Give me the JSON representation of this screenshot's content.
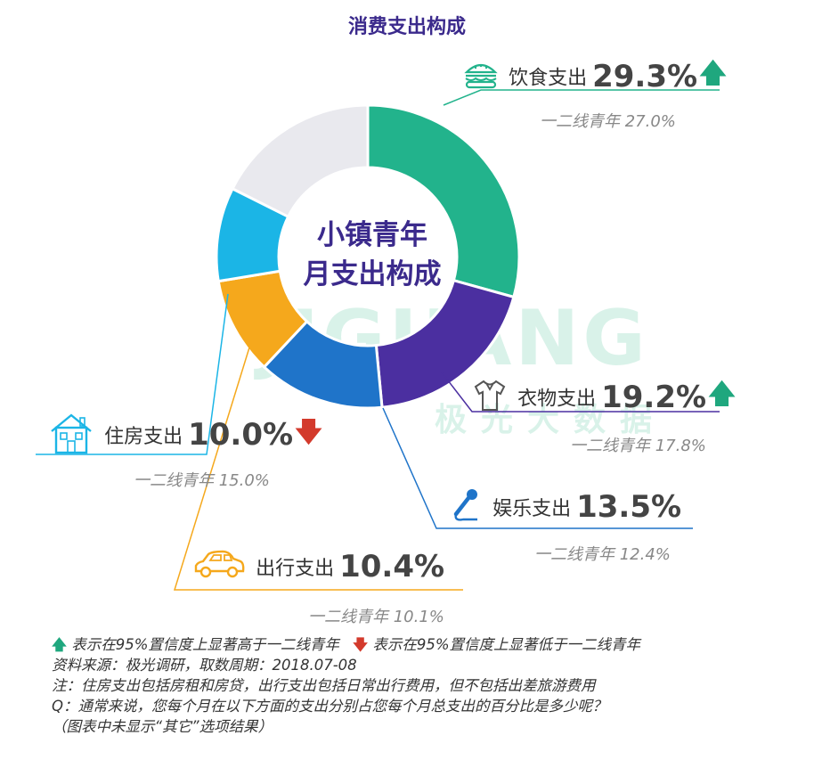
{
  "chart_data": {
    "type": "pie",
    "title": "消费支出构成",
    "center_label": [
      "小镇青年",
      "月支出构成"
    ],
    "slices": [
      {
        "label": "饮食支出",
        "value": 29.3,
        "color": "#22b38c",
        "trend": "up",
        "compare_text": "一二线青年 27.0%",
        "compare_value": 27.0
      },
      {
        "label": "衣物支出",
        "value": 19.2,
        "color": "#4b2fa0",
        "trend": "up",
        "compare_text": "一二线青年 17.8%",
        "compare_value": 17.8
      },
      {
        "label": "娱乐支出",
        "value": 13.5,
        "color": "#1f74c9",
        "trend": "none",
        "compare_text": "一二线青年 12.4%",
        "compare_value": 12.4
      },
      {
        "label": "出行支出",
        "value": 10.4,
        "color": "#f5a81c",
        "trend": "none",
        "compare_text": "一二线青年 10.1%",
        "compare_value": 10.1
      },
      {
        "label": "住房支出",
        "value": 10.0,
        "color": "#1bb5e6",
        "trend": "down",
        "compare_text": "一二线青年 15.0%",
        "compare_value": 15.0
      },
      {
        "label": "其它",
        "value": 17.6,
        "color": "#e9e9ee",
        "trend": "none",
        "shown_label": false
      }
    ],
    "legend": {
      "up_text": "表示在95%置信度上显著高于一二线青年",
      "down_text": "表示在95%置信度上显著低于一二线青年"
    }
  },
  "labels": {
    "food": {
      "name": "饮食支出",
      "pct": "29.3%",
      "sub": "一二线青年 27.0%"
    },
    "clothes": {
      "name": "衣物支出",
      "pct": "19.2%",
      "sub": "一二线青年 17.8%"
    },
    "fun": {
      "name": "娱乐支出",
      "pct": "13.5%",
      "sub": "一二线青年 12.4%"
    },
    "travel": {
      "name": "出行支出",
      "pct": "10.4%",
      "sub": "一二线青年 10.1%"
    },
    "house": {
      "name": "住房支出",
      "pct": "10.0%",
      "sub": "一二线青年 15.0%"
    }
  },
  "watermark": {
    "en": "JIGUANG",
    "cn": "极光大数据"
  },
  "notes": {
    "source": "资料来源：极光调研，取数周期：2018.07-08",
    "note": "注：住房支出包括房租和房贷，出行支出包括日常出行费用，但不包括出差旅游费用",
    "question": "Q：通常来说，您每个月在以下方面的支出分别占您每个月总支出的百分比是多少呢？",
    "omitted": "（图表中未显示“其它”选项结果）"
  },
  "colors": {
    "accent": "#3b2a8c",
    "up": "#1fa77e",
    "down": "#d33a2c"
  },
  "icons": [
    "burger-icon",
    "shirt-icon",
    "microphone-icon",
    "car-icon",
    "house-icon",
    "arrow-up-icon",
    "arrow-down-icon"
  ]
}
